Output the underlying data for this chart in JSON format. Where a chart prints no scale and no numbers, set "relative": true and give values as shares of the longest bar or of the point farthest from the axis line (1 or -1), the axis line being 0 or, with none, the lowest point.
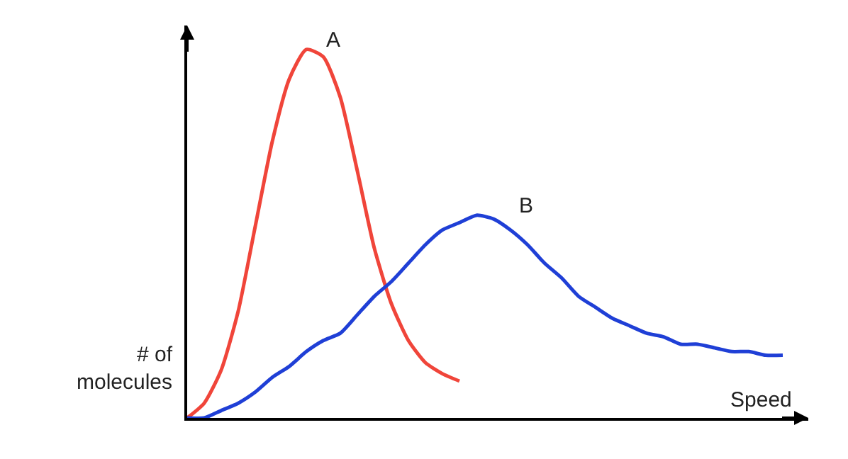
{
  "chart_data": {
    "type": "line",
    "relative": true,
    "xlabel": "Speed",
    "ylabel": "# of molecules",
    "legend": false,
    "marker": "none",
    "line_style": "solid",
    "categories": [
      null,
      null,
      null,
      null,
      null,
      null,
      null,
      null,
      null,
      null,
      null,
      null,
      null,
      null,
      null,
      null,
      null,
      null,
      null,
      null,
      null,
      null,
      null,
      null,
      null,
      null,
      null,
      null,
      null,
      null,
      null,
      null,
      null,
      null,
      null,
      null,
      null
    ],
    "series": [
      {
        "name": "A",
        "color": "#f0453a",
        "values": [
          0,
          0.04,
          0.13,
          0.29,
          0.52,
          0.75,
          0.92,
          1.0,
          0.98,
          0.87,
          0.67,
          0.46,
          0.31,
          0.21,
          0.15,
          0.12,
          0.1,
          null,
          null,
          null,
          null,
          null,
          null,
          null,
          null,
          null,
          null,
          null,
          null,
          null,
          null,
          null,
          null,
          null,
          null,
          null,
          null
        ]
      },
      {
        "name": "B",
        "color": "#1f3fd6",
        "values": [
          0,
          0,
          0.02,
          0.04,
          0.07,
          0.11,
          0.14,
          0.18,
          0.21,
          0.23,
          0.28,
          0.33,
          0.37,
          0.42,
          0.47,
          0.51,
          0.53,
          0.55,
          0.54,
          0.51,
          0.47,
          0.42,
          0.38,
          0.33,
          0.3,
          0.27,
          0.25,
          0.23,
          0.22,
          0.2,
          0.2,
          0.19,
          0.18,
          0.18,
          0.17,
          0.17,
          null
        ]
      }
    ]
  }
}
